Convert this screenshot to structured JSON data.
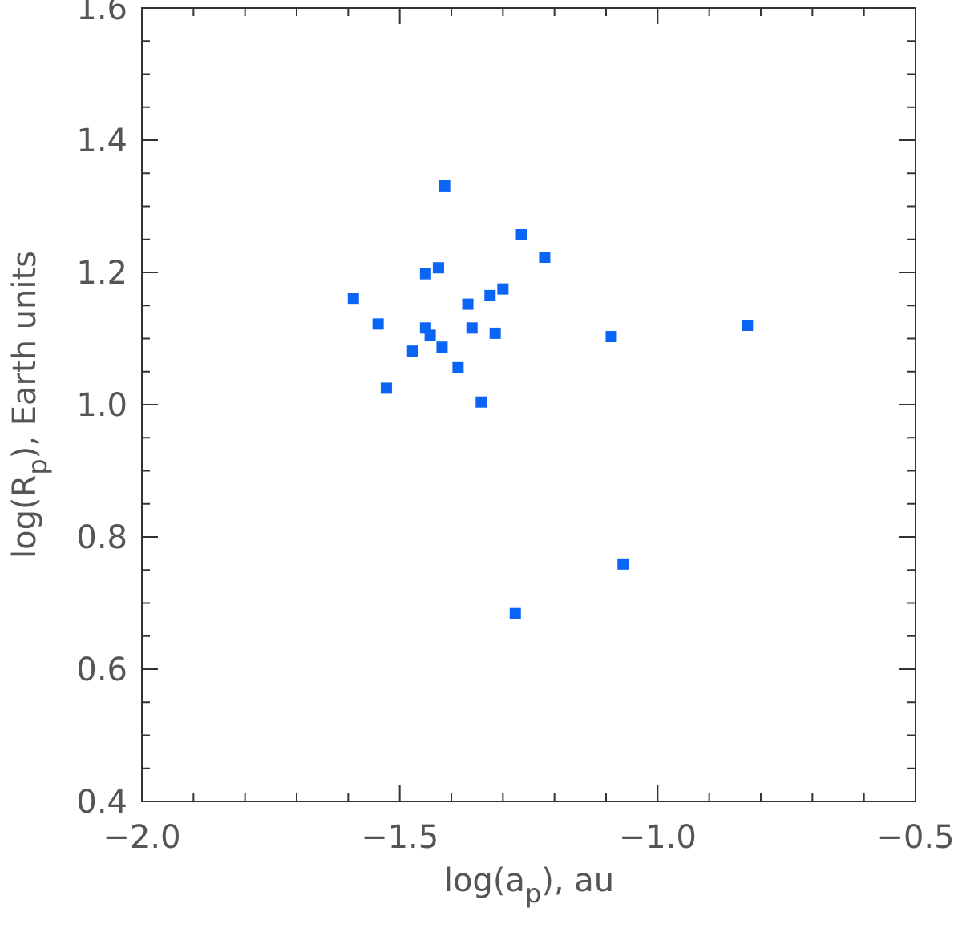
{
  "chart_data": {
    "type": "scatter",
    "x_label": [
      "log(a",
      "p",
      "), au"
    ],
    "y_label": [
      "log(R",
      "p",
      "), Earth units"
    ],
    "color": "#0a64f5",
    "xlim": [
      -2.0,
      -0.5
    ],
    "ylim": [
      0.4,
      1.6
    ],
    "xticks": [
      {
        "value": -2.0,
        "label": "−2.0"
      },
      {
        "value": -1.5,
        "label": "−1.5"
      },
      {
        "value": -1.0,
        "label": "−1.0"
      },
      {
        "value": -0.5,
        "label": "−0.5"
      }
    ],
    "yticks": [
      0.4,
      0.6,
      0.8,
      {
        "value": 1.0,
        "label": "1.0"
      },
      1.2,
      1.4,
      1.6
    ],
    "xminorticks": [
      -1.9,
      -1.8,
      -1.7,
      -1.6,
      -1.4,
      -1.3,
      -1.2,
      -1.1,
      -0.9,
      -0.8,
      -0.7,
      -0.6
    ],
    "yminorticks": [
      0.45,
      0.5,
      0.55,
      0.65,
      0.7,
      0.75,
      0.85,
      0.9,
      0.95,
      1.05,
      1.1,
      1.15,
      1.25,
      1.3,
      1.35,
      1.45,
      1.5,
      1.55
    ],
    "x": [
      -1.59,
      -1.542,
      -1.526,
      -1.475,
      -1.45,
      -1.45,
      -1.441,
      -1.425,
      -1.418,
      -1.413,
      -1.387,
      -1.368,
      -1.36,
      -1.342,
      -1.325,
      -1.315,
      -1.3,
      -1.276,
      -1.264,
      -1.219,
      -1.09,
      -1.067,
      -0.826
    ],
    "values": [
      1.161,
      1.122,
      1.025,
      1.081,
      1.198,
      1.116,
      1.105,
      1.207,
      1.087,
      1.331,
      1.056,
      1.152,
      1.116,
      1.004,
      1.165,
      1.108,
      1.175,
      0.684,
      1.257,
      1.223,
      1.103,
      0.759,
      1.12
    ]
  }
}
